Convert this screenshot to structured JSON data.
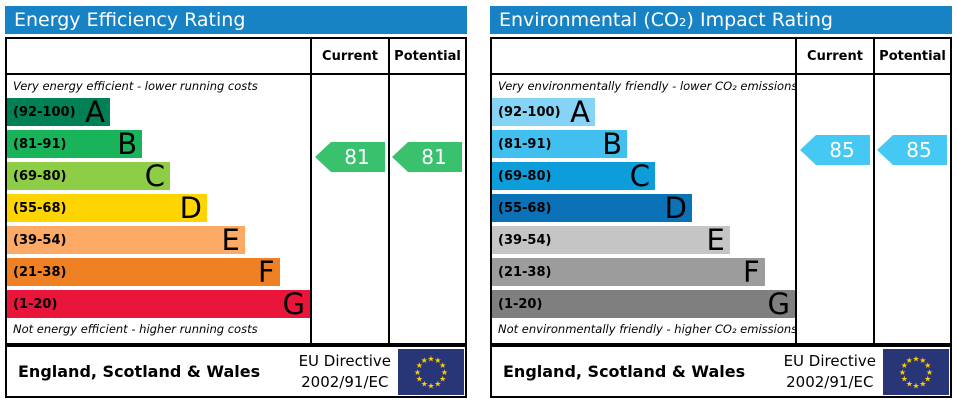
{
  "chart_data": [
    {
      "type": "bar",
      "chart_kind": "epc-rating-scale",
      "title": "Energy Efficiency Rating",
      "header_color": "#1782c4",
      "columns": {
        "current": "Current",
        "potential": "Potential"
      },
      "top_note": "Very energy efficient - lower running costs",
      "bottom_note": "Not energy efficient - higher running costs",
      "ylim": [
        1,
        100
      ],
      "bands": [
        {
          "range": "(92-100)",
          "letter": "A",
          "min": 92,
          "max": 100,
          "color": "#008054",
          "width_pct": 34
        },
        {
          "range": "(81-91)",
          "letter": "B",
          "min": 81,
          "max": 91,
          "color": "#19b459",
          "width_pct": 44.6
        },
        {
          "range": "(69-80)",
          "letter": "C",
          "min": 69,
          "max": 80,
          "color": "#8dce46",
          "width_pct": 53.8
        },
        {
          "range": "(55-68)",
          "letter": "D",
          "min": 55,
          "max": 68,
          "color": "#ffd500",
          "width_pct": 66
        },
        {
          "range": "(39-54)",
          "letter": "E",
          "min": 39,
          "max": 54,
          "color": "#fcaa65",
          "width_pct": 78.5
        },
        {
          "range": "(21-38)",
          "letter": "F",
          "min": 21,
          "max": 38,
          "color": "#ef8023",
          "width_pct": 90
        },
        {
          "range": "(1-20)",
          "letter": "G",
          "min": 1,
          "max": 20,
          "color": "#e9153b",
          "width_pct": 100
        }
      ],
      "current": {
        "value": 81,
        "band": "B",
        "color": "#39c16e"
      },
      "potential": {
        "value": 81,
        "band": "B",
        "color": "#39c16e"
      },
      "footer": {
        "region": "England, Scotland & Wales",
        "directive_line1": "EU Directive",
        "directive_line2": "2002/91/EC",
        "flag": "eu-flag",
        "flag_blue": "#283577",
        "flag_star_color": "#ffcc00"
      }
    },
    {
      "type": "bar",
      "chart_kind": "epc-rating-scale",
      "title": "Environmental (CO₂) Impact Rating",
      "header_color": "#1782c4",
      "columns": {
        "current": "Current",
        "potential": "Potential"
      },
      "top_note": "Very environmentally friendly - lower CO₂ emissions",
      "bottom_note": "Not environmentally friendly - higher CO₂ emissions",
      "ylim": [
        1,
        100
      ],
      "bands": [
        {
          "range": "(92-100)",
          "letter": "A",
          "min": 92,
          "max": 100,
          "color": "#85d4f5",
          "width_pct": 34
        },
        {
          "range": "(81-91)",
          "letter": "B",
          "min": 81,
          "max": 91,
          "color": "#41bfee",
          "width_pct": 44.6
        },
        {
          "range": "(69-80)",
          "letter": "C",
          "min": 69,
          "max": 80,
          "color": "#0d9ddb",
          "width_pct": 53.8
        },
        {
          "range": "(55-68)",
          "letter": "D",
          "min": 55,
          "max": 68,
          "color": "#0b72b8",
          "width_pct": 66
        },
        {
          "range": "(39-54)",
          "letter": "E",
          "min": 39,
          "max": 54,
          "color": "#c5c5c5",
          "width_pct": 78.5
        },
        {
          "range": "(21-38)",
          "letter": "F",
          "min": 21,
          "max": 38,
          "color": "#9c9c9c",
          "width_pct": 90
        },
        {
          "range": "(1-20)",
          "letter": "G",
          "min": 1,
          "max": 20,
          "color": "#7f7f7f",
          "width_pct": 100
        }
      ],
      "current": {
        "value": 85,
        "band": "B",
        "color": "#45c8f3"
      },
      "potential": {
        "value": 85,
        "band": "B",
        "color": "#45c8f3"
      },
      "footer": {
        "region": "England, Scotland & Wales",
        "directive_line1": "EU Directive",
        "directive_line2": "2002/91/EC",
        "flag": "eu-flag",
        "flag_blue": "#283577",
        "flag_star_color": "#ffcc00"
      }
    }
  ]
}
